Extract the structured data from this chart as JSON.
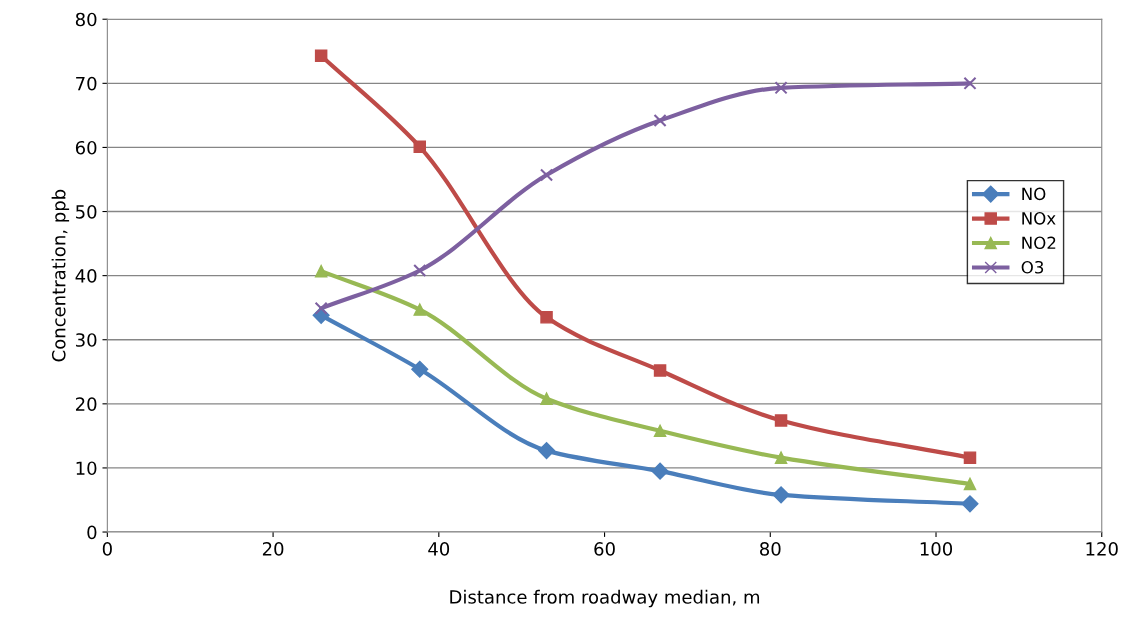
{
  "chart_data": {
    "type": "line",
    "xlabel": "Distance from roadway median, m",
    "ylabel": "Concentration, ppb",
    "x": [
      25.8,
      37.7,
      53.0,
      66.7,
      81.3,
      104.1
    ],
    "series": [
      {
        "name": "NO",
        "color": "#4a7ebb",
        "marker": "diamond",
        "values": [
          33.8,
          25.4,
          12.7,
          9.5,
          5.8,
          4.4
        ]
      },
      {
        "name": "NOx",
        "color": "#be4b48",
        "marker": "square",
        "values": [
          74.3,
          60.1,
          33.5,
          25.2,
          17.4,
          11.6
        ]
      },
      {
        "name": "NO2",
        "color": "#98b954",
        "marker": "triangle",
        "values": [
          40.7,
          34.7,
          20.8,
          15.8,
          11.6,
          7.5
        ]
      },
      {
        "name": "O3",
        "color": "#7d60a0",
        "marker": "cross",
        "values": [
          34.9,
          40.8,
          55.7,
          64.2,
          69.3,
          70.0
        ]
      }
    ],
    "xlim": [
      0,
      120
    ],
    "xticks": [
      0,
      20,
      40,
      60,
      80,
      100,
      120
    ],
    "ylim": [
      0,
      80
    ],
    "yticks": [
      0,
      10,
      20,
      30,
      40,
      50,
      60,
      70,
      80
    ],
    "grid": "y",
    "legend": "right",
    "line_style": "solid"
  }
}
